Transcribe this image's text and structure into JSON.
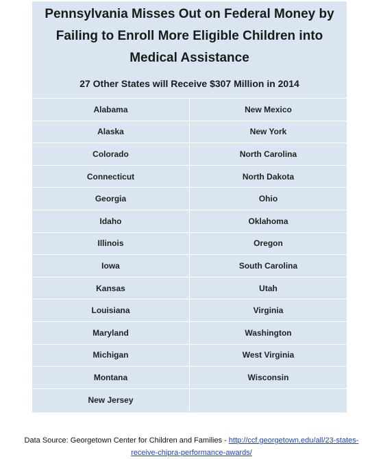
{
  "title": "Pennsylvania Misses Out on Federal Money by Failing to Enroll More Eligible Children into Medical Assistance",
  "subtitle": "27 Other States will Receive $307 Million in 2014",
  "states_left": [
    "Alabama",
    "Alaska",
    "Colorado",
    "Connecticut",
    "Georgia",
    "Idaho",
    "Illinois",
    "Iowa",
    "Kansas",
    "Louisiana",
    "Maryland",
    "Michigan",
    "Montana",
    "New Jersey"
  ],
  "states_right": [
    "New Mexico",
    "New York",
    "North Carolina",
    "North Dakota",
    "Ohio",
    "Oklahoma",
    "Oregon",
    "South Carolina",
    "Utah",
    "Virginia",
    "Washington",
    "West Virginia",
    "Wisconsin",
    ""
  ],
  "footer": {
    "source_prefix": "Data Source: Georgetown Center for Children and Families - ",
    "link_part1": "http://ccf.georgetown.edu/all/23-states-",
    "link_part2": "receive-chipra-performance-awards/"
  }
}
